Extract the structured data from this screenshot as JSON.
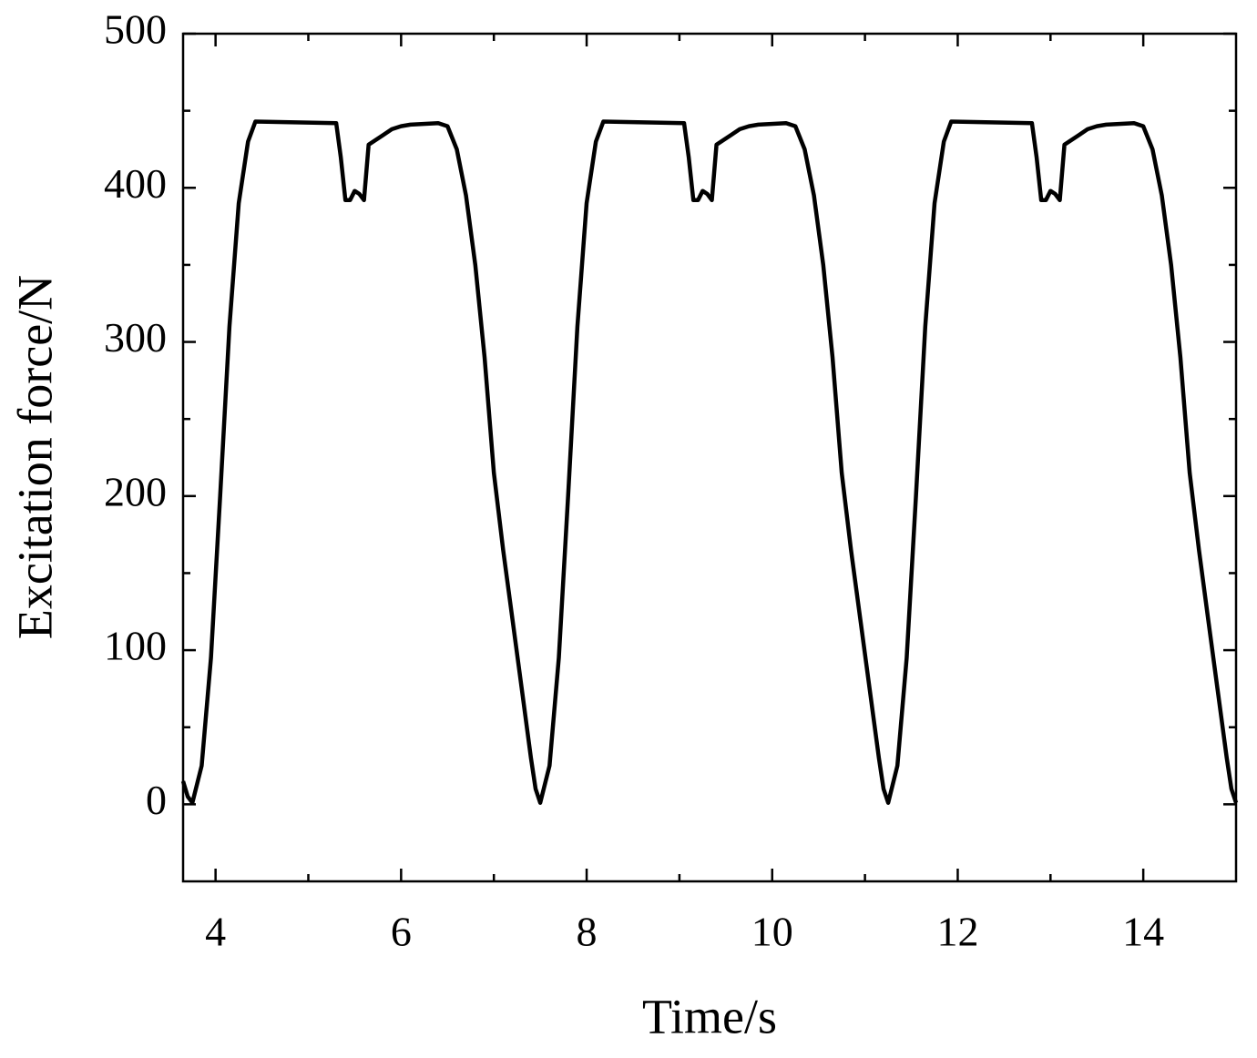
{
  "chart_data": {
    "type": "line",
    "xlabel": "Time/s",
    "ylabel": "Excitation force/N",
    "x": [
      3.65,
      3.7,
      3.75,
      3.85,
      3.95,
      4.05,
      4.15,
      4.25,
      4.35,
      4.43,
      5.3,
      5.35,
      5.4,
      5.45,
      5.5,
      5.55,
      5.6,
      5.65,
      5.7,
      5.8,
      5.9,
      6.0,
      6.1,
      6.4,
      6.5,
      6.6,
      6.7,
      6.8,
      6.9,
      7.0,
      7.1,
      7.2,
      7.3,
      7.4,
      7.45,
      7.5,
      7.6,
      7.7,
      7.8,
      7.9,
      8.0,
      8.1,
      8.18,
      9.05,
      9.1,
      9.15,
      9.2,
      9.25,
      9.3,
      9.35,
      9.4,
      9.45,
      9.55,
      9.65,
      9.75,
      9.85,
      10.15,
      10.25,
      10.35,
      10.45,
      10.55,
      10.65,
      10.75,
      10.85,
      10.95,
      11.05,
      11.15,
      11.2,
      11.25,
      11.35,
      11.45,
      11.55,
      11.65,
      11.75,
      11.85,
      11.93,
      12.8,
      12.85,
      12.9,
      12.95,
      13.0,
      13.05,
      13.1,
      13.15,
      13.2,
      13.3,
      13.4,
      13.5,
      13.6,
      13.9,
      14.0,
      14.1,
      14.2,
      14.3,
      14.4,
      14.5,
      14.6,
      14.7,
      14.8,
      14.9,
      14.95,
      15.0
    ],
    "values": [
      15,
      5,
      1,
      25,
      95,
      200,
      310,
      390,
      430,
      443,
      442,
      420,
      392,
      392,
      398,
      396,
      392,
      428,
      430,
      434,
      438,
      440,
      441,
      442,
      440,
      425,
      395,
      350,
      290,
      215,
      165,
      120,
      75,
      30,
      10,
      1,
      25,
      95,
      200,
      310,
      390,
      430,
      443,
      442,
      420,
      392,
      392,
      398,
      396,
      392,
      428,
      430,
      434,
      438,
      440,
      441,
      442,
      440,
      425,
      395,
      350,
      290,
      215,
      165,
      120,
      75,
      30,
      10,
      1,
      25,
      95,
      200,
      310,
      390,
      430,
      443,
      442,
      420,
      392,
      392,
      398,
      396,
      392,
      428,
      430,
      434,
      438,
      440,
      441,
      442,
      440,
      425,
      395,
      350,
      290,
      215,
      165,
      120,
      75,
      30,
      10,
      1
    ],
    "color": "#000000",
    "xlim": [
      3.65,
      15
    ],
    "xticks": [
      4,
      6,
      8,
      10,
      12,
      14
    ],
    "xminorticks": [
      5,
      7,
      9,
      11,
      13
    ],
    "ylim": [
      -50,
      500
    ],
    "yticks": [
      0,
      100,
      200,
      300,
      400,
      500
    ],
    "yminorticks": [
      50,
      150,
      250,
      350,
      450
    ],
    "grid": false
  }
}
